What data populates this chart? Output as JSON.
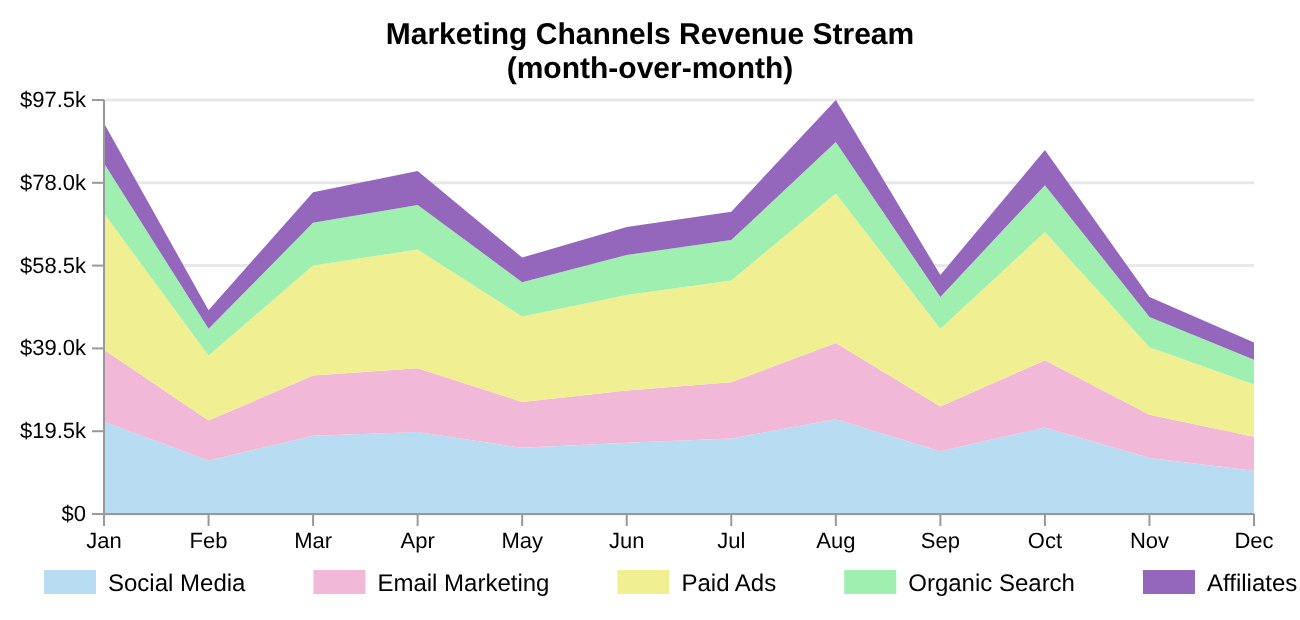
{
  "chart_data": {
    "type": "area",
    "title": "Marketing Channels Revenue Stream",
    "subtitle": "(month-over-month)",
    "stacked": true,
    "grid": "y",
    "legend": "bottom",
    "categories": [
      "Jan",
      "Feb",
      "Mar",
      "Apr",
      "May",
      "Jun",
      "Jul",
      "Aug",
      "Sep",
      "Oct",
      "Nov",
      "Dec"
    ],
    "ylim": [
      0,
      97.5
    ],
    "yticks": [
      {
        "value": 0,
        "label": "$0"
      },
      {
        "value": 19.5,
        "label": "$19.5k"
      },
      {
        "value": 39,
        "label": "$39.0k"
      },
      {
        "value": 58.5,
        "label": "$58.5k"
      },
      {
        "value": 78,
        "label": "$78.0k"
      },
      {
        "value": 97.5,
        "label": "$97.5k"
      }
    ],
    "series": [
      {
        "name": "Social Media",
        "color": "#b8dcf2",
        "values": [
          21.7,
          12.6,
          18.4,
          19.3,
          15.6,
          16.8,
          17.8,
          22.3,
          14.8,
          20.4,
          13.2,
          10.2
        ]
      },
      {
        "name": "Email Marketing",
        "color": "#f2b8d7",
        "values": [
          17.0,
          9.4,
          14.2,
          15.0,
          10.8,
          12.3,
          13.2,
          18.0,
          10.5,
          15.8,
          10.2,
          8.0
        ]
      },
      {
        "name": "Paid Ads",
        "color": "#f0ef91",
        "values": [
          32.1,
          15.3,
          25.9,
          28.0,
          20.1,
          22.5,
          24.0,
          35.2,
          18.3,
          30.2,
          15.9,
          12.3
        ]
      },
      {
        "name": "Organic Search",
        "color": "#9eefb0",
        "values": [
          11.8,
          6.3,
          10.1,
          10.5,
          8.1,
          9.4,
          9.5,
          12.1,
          7.5,
          11.0,
          7.1,
          5.8
        ]
      },
      {
        "name": "Affiliates",
        "color": "#9467bd",
        "values": [
          9.4,
          4.4,
          7.2,
          8.0,
          5.8,
          6.6,
          6.7,
          9.9,
          5.2,
          8.3,
          4.7,
          4.1
        ]
      }
    ]
  }
}
